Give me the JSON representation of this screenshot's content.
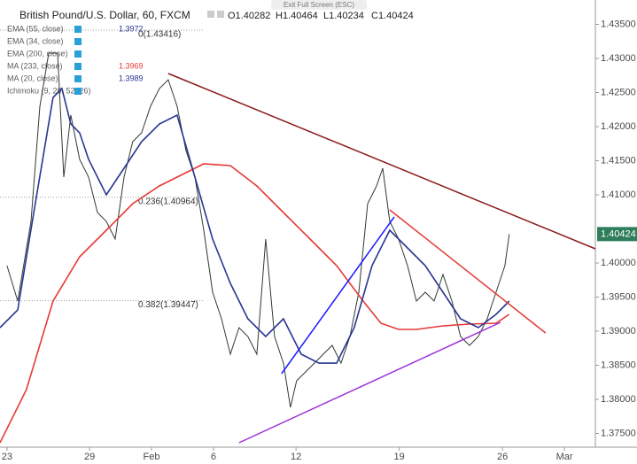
{
  "header": {
    "exit": "Exit Full Screen (ESC)",
    "symbol": "British Pound/U.S. Dollar, 60, FXCM",
    "ohlc": [
      "O1.40282",
      "H1.40464",
      "L1.40234",
      "C1.40424"
    ]
  },
  "chart_data": {
    "type": "line",
    "xlim": [
      -0.34,
      28.5
    ],
    "ylim": [
      1.37299,
      1.43857
    ],
    "xticks": [
      {
        "value": 0,
        "label": "23"
      },
      {
        "value": 4,
        "label": "29"
      },
      {
        "value": 7,
        "label": "Feb"
      },
      {
        "value": 10,
        "label": "6"
      },
      {
        "value": 14,
        "label": "12"
      },
      {
        "value": 19,
        "label": "19"
      },
      {
        "value": 24,
        "label": "26"
      },
      {
        "value": 27,
        "label": "Mar"
      }
    ],
    "yticks": [
      {
        "value": 1.375,
        "label": "1.37500"
      },
      {
        "value": 1.38,
        "label": "1.38000"
      },
      {
        "value": 1.385,
        "label": "1.38500"
      },
      {
        "value": 1.39,
        "label": "1.39000"
      },
      {
        "value": 1.395,
        "label": "1.39500"
      },
      {
        "value": 1.4,
        "label": "1.40000"
      },
      {
        "value": 1.41,
        "label": "1.41000"
      },
      {
        "value": 1.415,
        "label": "1.41500"
      },
      {
        "value": 1.42,
        "label": "1.42000"
      },
      {
        "value": 1.425,
        "label": "1.42500"
      },
      {
        "value": 1.43,
        "label": "1.43000"
      },
      {
        "value": 1.435,
        "label": "1.43500"
      }
    ],
    "last_price": 1.40424,
    "legend": [
      {
        "name": "EMA (55, close)",
        "label": "1.3972",
        "color": "#283593"
      },
      {
        "name": "EMA (34, close)",
        "color": "#888"
      },
      {
        "name": "EMA (200, close)",
        "color": "#888"
      },
      {
        "name": "MA (233, close)",
        "label": "1.3969",
        "color": "#e53935"
      },
      {
        "name": "MA (20, close)",
        "label": "1.3989",
        "color": "#283593"
      },
      {
        "name": "Ichimoku (9, 26, 52, 26)",
        "color": "#888"
      }
    ],
    "fib_levels": [
      {
        "value": 1.43416,
        "label": "0(1.43416)"
      },
      {
        "value": 1.40964,
        "label": "0.236(1.40964)"
      },
      {
        "value": 1.39447,
        "label": "0.382(1.39447)"
      }
    ],
    "series": [
      {
        "color": "#2f3b2f",
        "x": [
          0,
          0.52,
          1.16,
          1.59,
          2.02,
          2.45,
          2.75,
          3.09,
          3.52,
          3.95,
          4.38,
          4.81,
          5.24,
          5.67,
          6.09,
          6.52,
          6.95,
          7.38,
          7.81,
          8.24,
          8.67,
          9.1,
          9.53,
          9.96,
          10.39,
          10.82,
          11.24,
          11.67,
          12.1,
          12.53,
          12.96,
          13.39,
          13.73,
          14.03,
          14.46,
          14.89,
          15.32,
          15.75,
          16.18,
          16.61,
          17.04,
          17.47,
          17.9,
          18.2,
          18.54,
          18.97,
          19.4,
          19.83,
          20.26,
          20.69,
          21.12,
          21.55,
          21.97,
          22.4,
          22.83,
          23.26,
          23.69,
          24.12,
          24.33
        ],
        "values": [
          1.39961,
          1.39442,
          1.4061,
          1.42299,
          1.43078,
          1.43078,
          1.4126,
          1.42169,
          1.4152,
          1.4126,
          1.4074,
          1.4061,
          1.40351,
          1.4126,
          1.41779,
          1.41909,
          1.42299,
          1.42558,
          1.42688,
          1.42299,
          1.41649,
          1.4126,
          1.40481,
          1.39571,
          1.39182,
          1.38662,
          1.39052,
          1.38922,
          1.38662,
          1.40351,
          1.38922,
          1.38532,
          1.37883,
          1.38273,
          1.38403,
          1.38532,
          1.38662,
          1.38792,
          1.38532,
          1.38922,
          1.39571,
          1.4087,
          1.4113,
          1.4139,
          1.4061,
          1.40351,
          1.39961,
          1.39442,
          1.39571,
          1.39442,
          1.39831,
          1.39442,
          1.38922,
          1.38792,
          1.38922,
          1.39182,
          1.39571,
          1.39961,
          1.40424
        ]
      },
      {
        "color": "#e53935",
        "x": [
          -0.34,
          0.94,
          2.23,
          3.52,
          4.81,
          6.09,
          7.38,
          8.67,
          9.53,
          10.82,
          12.1,
          13.39,
          14.68,
          15.97,
          17.25,
          18.11,
          18.97,
          19.83,
          21.12,
          22.4,
          23.69,
          24.33
        ],
        "values": [
          1.37364,
          1.38143,
          1.39442,
          1.40091,
          1.40481,
          1.4087,
          1.4113,
          1.41325,
          1.41455,
          1.41429,
          1.4113,
          1.4074,
          1.40351,
          1.39961,
          1.39442,
          1.39117,
          1.39026,
          1.39026,
          1.39078,
          1.39104,
          1.39117,
          1.39247
        ]
      },
      {
        "color": "#283593",
        "x": [
          -0.34,
          0.52,
          1.37,
          2.23,
          2.66,
          3.09,
          3.52,
          3.95,
          4.81,
          5.67,
          6.52,
          7.38,
          8.24,
          9.1,
          9.96,
          10.82,
          11.67,
          12.53,
          13.39,
          14.25,
          15.11,
          15.97,
          16.82,
          17.68,
          18.54,
          19.4,
          20.26,
          21.12,
          21.97,
          22.83,
          23.69,
          24.33
        ],
        "values": [
          1.39052,
          1.39312,
          1.4087,
          1.42429,
          1.42558,
          1.42039,
          1.41909,
          1.4152,
          1.41,
          1.4139,
          1.41779,
          1.42039,
          1.42169,
          1.4126,
          1.40351,
          1.39701,
          1.39182,
          1.38922,
          1.39182,
          1.38662,
          1.38532,
          1.38532,
          1.39052,
          1.39961,
          1.40481,
          1.40221,
          1.39961,
          1.39571,
          1.39182,
          1.39052,
          1.39247,
          1.39442
        ]
      }
    ],
    "trendlines": [
      {
        "color": "#8b1a1a",
        "x": [
          7.81,
          28.5
        ],
        "values": [
          1.42779,
          1.40208
        ]
      },
      {
        "color": "#e53935",
        "x": [
          18.54,
          26.09
        ],
        "values": [
          1.40779,
          1.38974
        ]
      },
      {
        "color": "#1a1aff",
        "x": [
          13.3,
          18.76
        ],
        "values": [
          1.38377,
          1.40675
        ]
      },
      {
        "color": "#9b30d9",
        "x": [
          11.24,
          23.91
        ],
        "values": [
          1.37364,
          1.3913
        ]
      }
    ]
  }
}
